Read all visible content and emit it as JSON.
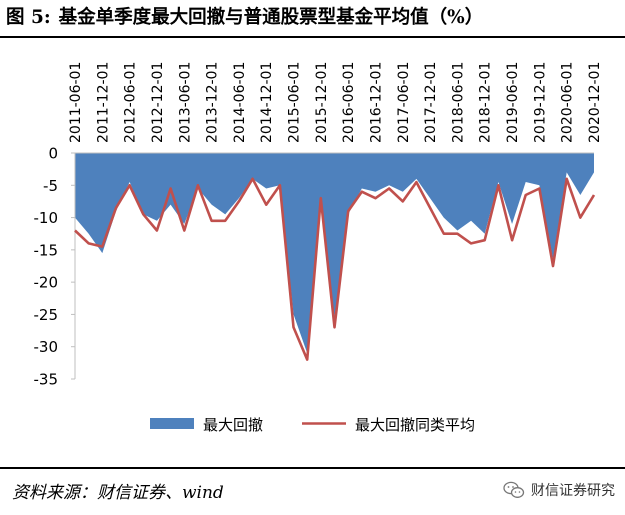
{
  "title": {
    "label": "图 5:",
    "text": "基金单季度最大回撤与普通股票型基金平均值（%）"
  },
  "source": "资料来源：财信证券、wind",
  "watermark": {
    "text": "财信证券研究",
    "icon": "wechat-icon"
  },
  "chart_data": {
    "type": "area",
    "xlabel": "",
    "ylabel": "",
    "ylim": [
      -35,
      0
    ],
    "yticks": [
      0,
      -5,
      -10,
      -15,
      -20,
      -25,
      -30,
      -35
    ],
    "grid": false,
    "legend_position": "bottom",
    "x": [
      "2011-06-01",
      "2011-09-01",
      "2011-12-01",
      "2012-03-01",
      "2012-06-01",
      "2012-09-01",
      "2012-12-01",
      "2013-03-01",
      "2013-06-01",
      "2013-09-01",
      "2013-12-01",
      "2014-03-01",
      "2014-06-01",
      "2014-09-01",
      "2014-12-01",
      "2015-03-01",
      "2015-06-01",
      "2015-09-01",
      "2015-12-01",
      "2016-03-01",
      "2016-06-01",
      "2016-09-01",
      "2016-12-01",
      "2017-03-01",
      "2017-06-01",
      "2017-09-01",
      "2017-12-01",
      "2018-03-01",
      "2018-06-01",
      "2018-09-01",
      "2018-12-01",
      "2019-03-01",
      "2019-06-01",
      "2019-09-01",
      "2019-12-01",
      "2020-03-01",
      "2020-06-01",
      "2020-09-01",
      "2020-12-01"
    ],
    "xticklabels": [
      "2011-06-01",
      "2011-12-01",
      "2012-06-01",
      "2012-12-01",
      "2013-06-01",
      "2013-12-01",
      "2014-06-01",
      "2014-12-01",
      "2015-06-01",
      "2015-12-01",
      "2016-06-01",
      "2016-12-01",
      "2017-06-01",
      "2017-12-01",
      "2018-06-01",
      "2018-12-01",
      "2019-06-01",
      "2019-12-01",
      "2020-06-01",
      "2020-12-01"
    ],
    "series": [
      {
        "name": "最大回撤",
        "kind": "area",
        "color": "#4e81bd",
        "values": [
          -10.0,
          -12.5,
          -15.5,
          -9.0,
          -4.5,
          -9.5,
          -10.5,
          -8.0,
          -11.0,
          -5.5,
          -8.0,
          -9.5,
          -7.0,
          -4.0,
          -5.5,
          -5.0,
          -25.0,
          -31.0,
          -7.5,
          -25.5,
          -9.5,
          -5.5,
          -6.0,
          -5.0,
          -6.0,
          -4.0,
          -7.0,
          -10.0,
          -12.0,
          -10.5,
          -12.5,
          -4.5,
          -11.0,
          -4.5,
          -5.0,
          -16.5,
          -3.0,
          -6.5,
          -3.0
        ]
      },
      {
        "name": "最大回撤同类平均",
        "kind": "line",
        "color": "#c0504d",
        "values": [
          -12.0,
          -14.0,
          -14.5,
          -8.5,
          -5.0,
          -9.5,
          -12.0,
          -5.5,
          -12.0,
          -5.0,
          -10.5,
          -10.5,
          -7.5,
          -4.0,
          -8.0,
          -5.0,
          -27.0,
          -32.0,
          -7.0,
          -27.0,
          -9.0,
          -6.0,
          -7.0,
          -5.5,
          -7.5,
          -4.5,
          -8.5,
          -12.5,
          -12.5,
          -14.0,
          -13.5,
          -5.0,
          -13.5,
          -6.5,
          -5.5,
          -17.5,
          -4.0,
          -10.0,
          -6.5
        ]
      }
    ]
  },
  "colors": {
    "area": "#4e81bd",
    "line": "#c0504d",
    "axis": "#bfbfbf"
  }
}
